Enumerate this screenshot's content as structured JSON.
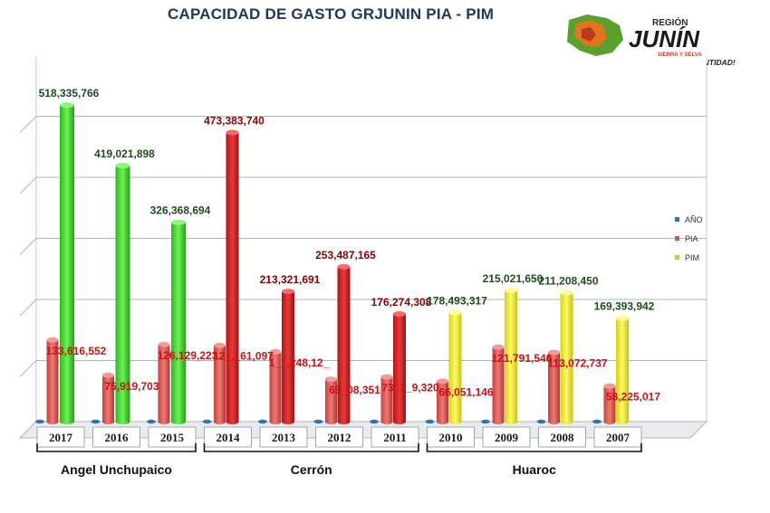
{
  "title": "CAPACIDAD DE GASTO GRJUNIN PIA - PIM",
  "logo": {
    "name": "Gobierno Regional Junín",
    "text_region": "REGIÓN",
    "text_main": "JUNÍN",
    "text_sub": "SIERRA Y SELVA",
    "tagline": "¡DESARROLLO SOSTENIBLE CON IDENTIDAD!"
  },
  "colors": {
    "pia": "#d9534f",
    "pim_green": "#3ed62a",
    "pim_red": "#d42020",
    "pim_yellow": "#f4f21a",
    "ano": "#2e75b6",
    "grid": "#b5b5b5",
    "title": "#1f3864"
  },
  "chart_data": {
    "type": "bar",
    "title": "CAPACIDAD DE GASTO GRJUNIN PIA - PIM",
    "categories": [
      "2017",
      "2016",
      "2015",
      "2014",
      "2013",
      "2012",
      "2011",
      "2010",
      "2009",
      "2008",
      "2007"
    ],
    "legend": [
      "AÑO",
      "PIA",
      "PIM"
    ],
    "legend_position": "right",
    "grid": true,
    "ylim": [
      0,
      520000000
    ],
    "series": [
      {
        "name": "AÑO",
        "values": [
          2017,
          2016,
          2015,
          2014,
          2013,
          2012,
          2011,
          2010,
          2009,
          2008,
          2007
        ]
      },
      {
        "name": "PIA",
        "values": [
          133616552,
          75919703,
          126129223,
          124861097,
          114248121,
          69308351,
          73159320,
          66051146,
          121791546,
          113072737,
          58225017
        ],
        "labels": [
          "133,616,552",
          "75,919,703",
          "126,129,223",
          "12_,_61,097",
          "1__,248,12_",
          "69_08,351",
          "73_1_9,320",
          "66,051,146",
          "121,791,546",
          "113,072,737",
          "58,225,017"
        ]
      },
      {
        "name": "PIM",
        "values": [
          518335766,
          419021898,
          326368694,
          473383740,
          213321691,
          253487165,
          176274308,
          178493317,
          215021650,
          211208450,
          169393942
        ],
        "labels": [
          "518,335,766",
          "419,021,898",
          "326,368,694",
          "473,383,740",
          "213,321,691",
          "253,487,165",
          "176,274,308",
          "178,493,317",
          "215,021,650",
          "211,208,450",
          "169,393,942"
        ]
      }
    ],
    "groups": [
      {
        "name": "Angel Unchupaico",
        "categories": [
          "2017",
          "2016",
          "2015"
        ]
      },
      {
        "name": "Cerrón",
        "categories": [
          "2014",
          "2013",
          "2012",
          "2011"
        ]
      },
      {
        "name": "Huaroc",
        "categories": [
          "2010",
          "2009",
          "2008",
          "2007"
        ]
      }
    ]
  }
}
